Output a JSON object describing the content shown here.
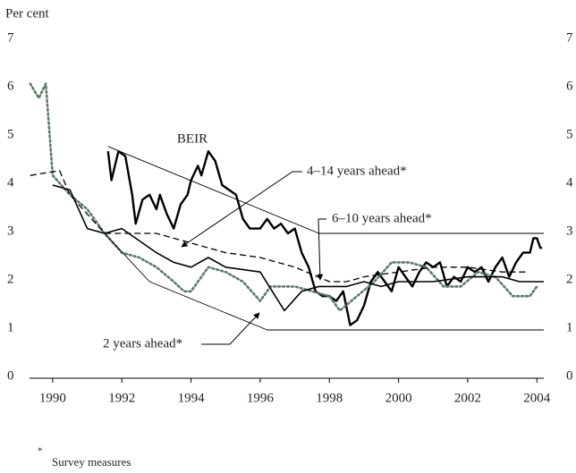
{
  "chart_data": {
    "type": "line",
    "y_label": "Per cent",
    "xlim": [
      1989.33,
      2004.2
    ],
    "xticks": [
      1990,
      1992,
      1994,
      1996,
      1998,
      2000,
      2002,
      2004
    ],
    "ylim": [
      0,
      7
    ],
    "yticks": [
      0,
      1,
      2,
      3,
      4,
      5,
      6,
      7
    ],
    "y2lim": [
      0,
      7
    ],
    "y2ticks": [
      0,
      1,
      2,
      3,
      4,
      5,
      6,
      7
    ],
    "grid": false,
    "series": [
      {
        "name": "BEIR",
        "color": "#000000",
        "style": "solid",
        "line_width": 2.4,
        "x": [
          1991.6,
          1991.7,
          1991.9,
          1992.1,
          1992.3,
          1992.4,
          1992.6,
          1992.8,
          1993.0,
          1993.1,
          1993.3,
          1993.5,
          1993.7,
          1993.9,
          1994.0,
          1994.2,
          1994.3,
          1994.5,
          1994.7,
          1994.9,
          1995.1,
          1995.3,
          1995.5,
          1995.7,
          1996.0,
          1996.2,
          1996.4,
          1996.6,
          1996.8,
          1997.0,
          1997.2,
          1997.4,
          1997.6,
          1997.8,
          1998.0,
          1998.2,
          1998.4,
          1998.6,
          1998.8,
          1999.0,
          1999.2,
          1999.4,
          1999.6,
          1999.8,
          2000.0,
          2000.2,
          2000.4,
          2000.6,
          2000.8,
          2001.0,
          2001.2,
          2001.4,
          2001.6,
          2001.8,
          2002.0,
          2002.2,
          2002.4,
          2002.6,
          2002.8,
          2003.0,
          2003.2,
          2003.4,
          2003.6,
          2003.8,
          2003.9,
          2004.0,
          2004.1,
          2004.15
        ],
        "values": [
          4.7,
          4.1,
          4.7,
          4.6,
          3.8,
          3.2,
          3.7,
          3.8,
          3.5,
          3.8,
          3.4,
          3.1,
          3.6,
          3.8,
          4.1,
          4.4,
          4.2,
          4.7,
          4.5,
          4.0,
          3.9,
          3.8,
          3.3,
          3.1,
          3.1,
          3.3,
          3.1,
          3.2,
          3.0,
          3.1,
          2.6,
          2.3,
          1.8,
          1.7,
          1.7,
          1.6,
          1.8,
          1.1,
          1.2,
          1.5,
          2.0,
          2.2,
          2.0,
          1.8,
          2.3,
          2.1,
          1.9,
          2.2,
          2.4,
          2.3,
          2.4,
          1.9,
          2.1,
          2.0,
          2.3,
          2.2,
          2.3,
          2.0,
          2.3,
          2.5,
          2.1,
          2.4,
          2.6,
          2.6,
          2.9,
          2.9,
          2.7,
          2.7
        ]
      },
      {
        "name": "2 years ahead*",
        "color": "#5c7a68",
        "style": "dotted",
        "line_width": 2.6,
        "x": [
          1989.35,
          1989.6,
          1989.8,
          1990.0,
          1990.5,
          1991.0,
          1991.5,
          1992.0,
          1992.5,
          1993.0,
          1993.5,
          1993.8,
          1994.0,
          1994.5,
          1995.0,
          1995.5,
          1996.0,
          1996.3,
          1997.0,
          1997.5,
          1998.0,
          1998.3,
          1998.8,
          1999.3,
          1999.8,
          2000.3,
          2000.8,
          2001.3,
          2001.8,
          2002.3,
          2002.8,
          2003.3,
          2003.8,
          2004.0
        ],
        "values": [
          6.1,
          5.8,
          6.1,
          4.2,
          3.8,
          3.5,
          3.0,
          2.6,
          2.5,
          2.3,
          2.0,
          1.8,
          1.8,
          2.3,
          2.2,
          2.0,
          1.6,
          1.9,
          1.9,
          1.8,
          1.7,
          1.4,
          1.7,
          2.0,
          2.4,
          2.4,
          2.3,
          1.9,
          1.9,
          2.2,
          2.1,
          1.7,
          1.7,
          1.9
        ]
      },
      {
        "name": "4–14 years ahead*",
        "color": "#000000",
        "style": "dashed",
        "line_width": 1.3,
        "x": [
          1989.35,
          1990.2,
          1990.5,
          1991.5,
          1992.0,
          1993.0,
          1994.0,
          1995.0,
          1996.0,
          1997.0,
          1998.0,
          1998.5,
          1999.0,
          2000.0,
          2001.0,
          2002.0,
          2003.0,
          2003.7
        ],
        "values": [
          4.2,
          4.3,
          3.8,
          3.0,
          3.0,
          3.0,
          2.8,
          2.6,
          2.5,
          2.3,
          2.0,
          2.0,
          2.1,
          2.2,
          2.3,
          2.3,
          2.2,
          2.2
        ]
      },
      {
        "name": "6–10 years ahead*",
        "color": "#000000",
        "style": "solid",
        "line_width": 1.6,
        "x": [
          1990.0,
          1990.5,
          1991.0,
          1991.5,
          1992.0,
          1993.0,
          1993.5,
          1994.0,
          1994.5,
          1995.0,
          1996.0,
          1996.7,
          1997.2,
          1997.7,
          1998.0,
          1998.5,
          1999.0,
          1999.5,
          2000.0,
          2001.0,
          2002.0,
          2003.0,
          2003.5,
          2004.2
        ],
        "values": [
          4.0,
          3.9,
          3.1,
          3.0,
          3.1,
          2.6,
          2.4,
          2.3,
          2.5,
          2.3,
          2.2,
          1.4,
          1.8,
          1.9,
          1.9,
          1.9,
          2.0,
          1.9,
          2.0,
          2.0,
          2.1,
          2.1,
          2.0,
          2.0
        ]
      },
      {
        "color": "#000000",
        "style": "solid",
        "line_width": 0.9,
        "x": [
          1991.6,
          1997.7,
          2004.2
        ],
        "values": [
          4.8,
          3.0,
          3.0
        ]
      },
      {
        "color": "#000000",
        "style": "solid",
        "line_width": 0.9,
        "x": [
          1991.5,
          1992.8,
          1996.2,
          2004.2
        ],
        "values": [
          3.0,
          2.0,
          1.0,
          1.0
        ]
      }
    ],
    "annotations": [
      "BEIR",
      "4–14 years ahead*",
      "6–10 years ahead*",
      "2 years ahead*"
    ],
    "footnote": {
      "marker": "*",
      "text": "Survey measures"
    }
  }
}
